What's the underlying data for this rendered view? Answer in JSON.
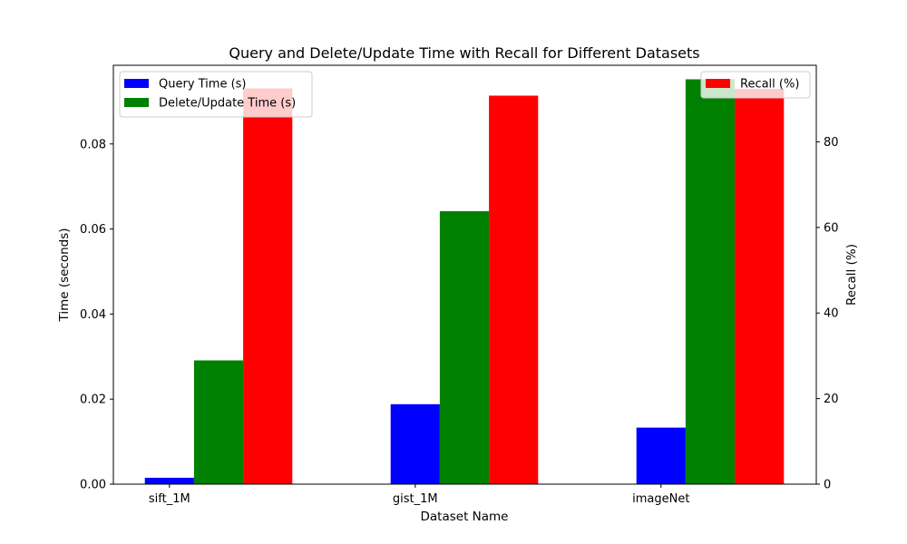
{
  "chart_data": {
    "type": "bar",
    "title": "Query and Delete/Update Time with Recall for Different Datasets",
    "xlabel": "Dataset Name",
    "ylabel_left": "Time (seconds)",
    "ylabel_right": "Recall (%)",
    "categories": [
      "sift_1M",
      "gist_1M",
      "imageNet"
    ],
    "ylim_left": [
      0,
      0.0985
    ],
    "ylim_right": [
      0,
      97.9
    ],
    "yticks_left": [
      "0.00",
      "0.02",
      "0.04",
      "0.06",
      "0.08"
    ],
    "yticks_left_values": [
      0,
      0.02,
      0.04,
      0.06,
      0.08
    ],
    "yticks_right": [
      "0",
      "20",
      "40",
      "60",
      "80"
    ],
    "yticks_right_values": [
      0,
      20,
      40,
      60,
      80
    ],
    "grid": false,
    "series": [
      {
        "name": "Query Time (s)",
        "axis": "left",
        "color": "#0000ff",
        "values": [
          0.0015,
          0.0188,
          0.0133
        ]
      },
      {
        "name": "Delete/Update Time (s)",
        "axis": "left",
        "color": "#008000",
        "values": [
          0.0291,
          0.0642,
          0.0952
        ]
      },
      {
        "name": "Recall (%)",
        "axis": "right",
        "color": "#ff0000",
        "values": [
          92.5,
          90.8,
          92.4
        ]
      }
    ],
    "legends": [
      {
        "placement": "upper-left",
        "entries": [
          "Query Time (s)",
          "Delete/Update Time (s)"
        ]
      },
      {
        "placement": "upper-right",
        "entries": [
          "Recall (%)"
        ]
      }
    ]
  }
}
